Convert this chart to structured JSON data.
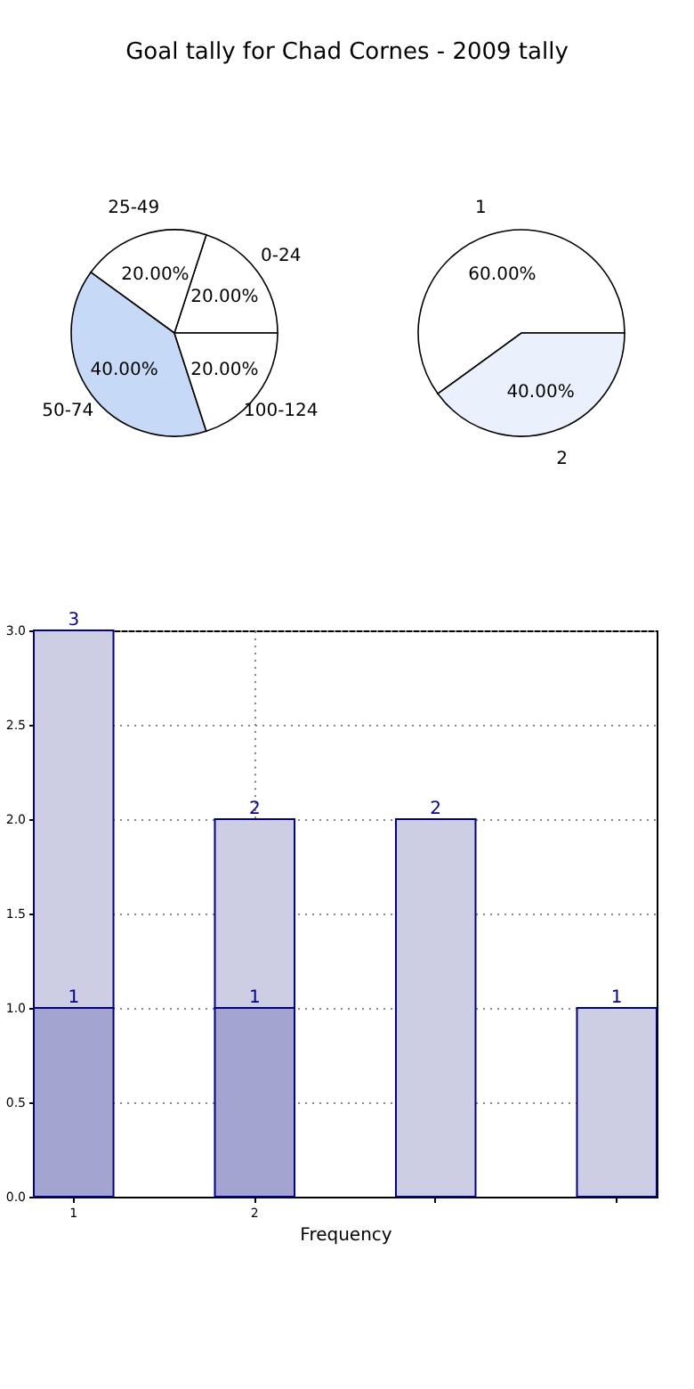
{
  "chart_data": [
    {
      "type": "pie",
      "title": "Goal tally for Chad Cornes - 2009 tally",
      "categories": [
        "0-24",
        "25-49",
        "50-74",
        "100-124"
      ],
      "values": [
        20,
        20,
        40,
        20
      ],
      "colors": [
        "#ffffff",
        "#ffffff",
        "#c6d9f7",
        "#ffffff"
      ],
      "value_labels": [
        "20.00%",
        "20.00%",
        "40.00%",
        "20.00%"
      ]
    },
    {
      "type": "pie",
      "categories": [
        "1",
        "2"
      ],
      "values": [
        60,
        40
      ],
      "colors": [
        "#ffffff",
        "#ebf1fc"
      ],
      "value_labels": [
        "60.00%",
        "40.00%"
      ]
    },
    {
      "type": "bar",
      "xlabel": "Frequency",
      "categories": [
        "1",
        "2",
        null,
        null
      ],
      "stacked": true,
      "series": [
        {
          "color": "#a3a4d0",
          "values": [
            1,
            1,
            null,
            null
          ],
          "value_labels": [
            "1",
            "1",
            null,
            null
          ]
        },
        {
          "color": "#cdcde3",
          "values": [
            2,
            1,
            2,
            1
          ]
        }
      ],
      "totals": [
        "3",
        "2",
        "2",
        "1"
      ],
      "ylim": [
        0,
        3
      ],
      "yticks": [
        {
          "value": 0,
          "label": "0.0"
        },
        {
          "value": 0.5,
          "label": "0.5"
        },
        {
          "value": 1,
          "label": "1.0"
        },
        {
          "value": 1.5,
          "label": "1.5"
        },
        {
          "value": 2,
          "label": "2.0"
        },
        {
          "value": 2.5,
          "label": "2.5"
        },
        {
          "value": 3,
          "label": "3.0"
        }
      ],
      "grid": true
    }
  ]
}
